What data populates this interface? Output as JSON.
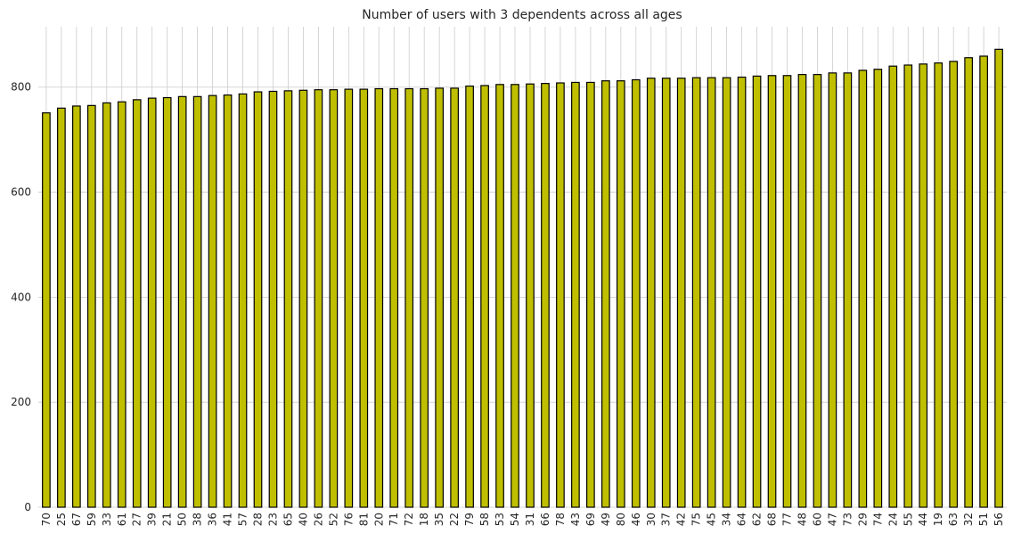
{
  "chart_data": {
    "type": "bar",
    "title": "Number of users with 3 dependents across all ages",
    "xlabel": "",
    "ylabel": "",
    "ylim": [
      0,
      915
    ],
    "yticks": [
      0,
      200,
      400,
      600,
      800
    ],
    "grid": true,
    "bar_color": "#bfbf00",
    "edge_color": "#000000",
    "grid_color": "#cccccc",
    "categories": [
      "70",
      "25",
      "67",
      "59",
      "33",
      "61",
      "27",
      "39",
      "21",
      "50",
      "38",
      "36",
      "41",
      "57",
      "28",
      "23",
      "65",
      "40",
      "26",
      "52",
      "76",
      "81",
      "20",
      "71",
      "72",
      "18",
      "35",
      "22",
      "79",
      "58",
      "53",
      "54",
      "31",
      "66",
      "78",
      "43",
      "69",
      "49",
      "80",
      "46",
      "30",
      "37",
      "42",
      "75",
      "45",
      "34",
      "64",
      "62",
      "68",
      "77",
      "48",
      "60",
      "47",
      "73",
      "29",
      "74",
      "24",
      "55",
      "44",
      "19",
      "63",
      "32",
      "51",
      "56"
    ],
    "values": [
      751,
      760,
      764,
      765,
      770,
      772,
      776,
      779,
      780,
      782,
      782,
      784,
      785,
      787,
      791,
      792,
      793,
      794,
      795,
      795,
      796,
      796,
      797,
      797,
      797,
      797,
      798,
      798,
      802,
      803,
      805,
      805,
      806,
      807,
      808,
      809,
      809,
      812,
      812,
      814,
      817,
      817,
      817,
      818,
      818,
      818,
      819,
      821,
      822,
      822,
      824,
      824,
      827,
      827,
      832,
      834,
      840,
      842,
      844,
      846,
      849,
      856,
      859,
      872
    ]
  }
}
